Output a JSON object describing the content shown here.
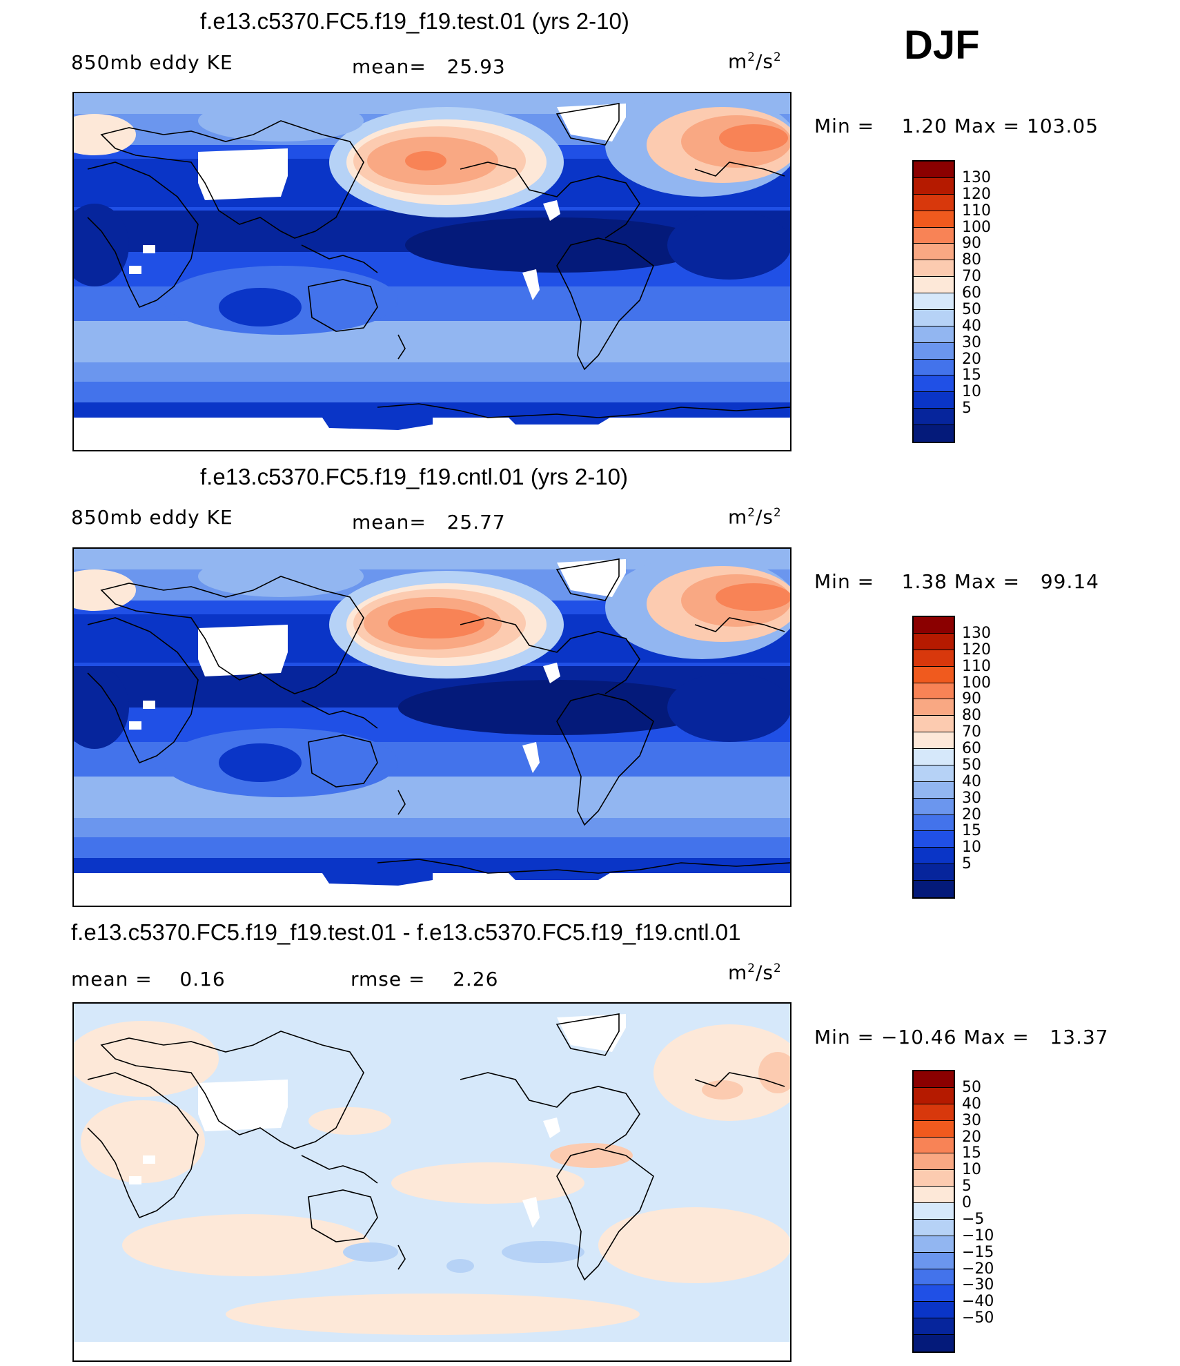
{
  "season": "DJF",
  "panels": [
    {
      "title": "f.e13.c5370.FC5.f19_f19.test.01 (yrs 2-10)",
      "left_label": "850mb eddy KE",
      "mid_label": "mean=   25.93",
      "units_base": "m",
      "units_exp1": "2",
      "units_mid": "/s",
      "units_exp2": "2",
      "minmax": "Min =    1.20 Max = 103.05",
      "colorbar": {
        "colors": [
          "#8b0000",
          "#b51a00",
          "#d8380c",
          "#f05a1e",
          "#f88356",
          "#f9a883",
          "#fccbb0",
          "#fde8d8",
          "#d6e8fa",
          "#b6d2f6",
          "#92b6f1",
          "#6b96ee",
          "#4373eb",
          "#2050e6",
          "#0a35c7",
          "#06259c",
          "#041a7a"
        ],
        "labels": [
          "130",
          "120",
          "110",
          "100",
          "90",
          "80",
          "70",
          "60",
          "50",
          "40",
          "30",
          "20",
          "15",
          "10",
          "5"
        ]
      }
    },
    {
      "title": "f.e13.c5370.FC5.f19_f19.cntl.01 (yrs 2-10)",
      "left_label": "850mb eddy KE",
      "mid_label": "mean=   25.77",
      "units_base": "m",
      "units_exp1": "2",
      "units_mid": "/s",
      "units_exp2": "2",
      "minmax": "Min =    1.38 Max =   99.14",
      "colorbar": {
        "colors": [
          "#8b0000",
          "#b51a00",
          "#d8380c",
          "#f05a1e",
          "#f88356",
          "#f9a883",
          "#fccbb0",
          "#fde8d8",
          "#d6e8fa",
          "#b6d2f6",
          "#92b6f1",
          "#6b96ee",
          "#4373eb",
          "#2050e6",
          "#0a35c7",
          "#06259c",
          "#041a7a"
        ],
        "labels": [
          "130",
          "120",
          "110",
          "100",
          "90",
          "80",
          "70",
          "60",
          "50",
          "40",
          "30",
          "20",
          "15",
          "10",
          "5"
        ]
      }
    },
    {
      "title": "f.e13.c5370.FC5.f19_f19.test.01 - f.e13.c5370.FC5.f19_f19.cntl.01",
      "left_label": "mean =    0.16",
      "mid_label": "rmse =    2.26",
      "units_base": "m",
      "units_exp1": "2",
      "units_mid": "/s",
      "units_exp2": "2",
      "minmax": "Min = −10.46 Max =   13.37",
      "colorbar": {
        "colors": [
          "#8b0000",
          "#b51a00",
          "#d8380c",
          "#f05a1e",
          "#f88356",
          "#f9a883",
          "#fccbb0",
          "#fde8d8",
          "#d6e8fa",
          "#b6d2f6",
          "#92b6f1",
          "#6b96ee",
          "#4373eb",
          "#2050e6",
          "#0a35c7",
          "#06259c",
          "#041a7a"
        ],
        "labels": [
          "50",
          "40",
          "30",
          "20",
          "15",
          "10",
          "5",
          "0",
          "−5",
          "−10",
          "−15",
          "−20",
          "−30",
          "−40",
          "−50"
        ]
      }
    }
  ]
}
